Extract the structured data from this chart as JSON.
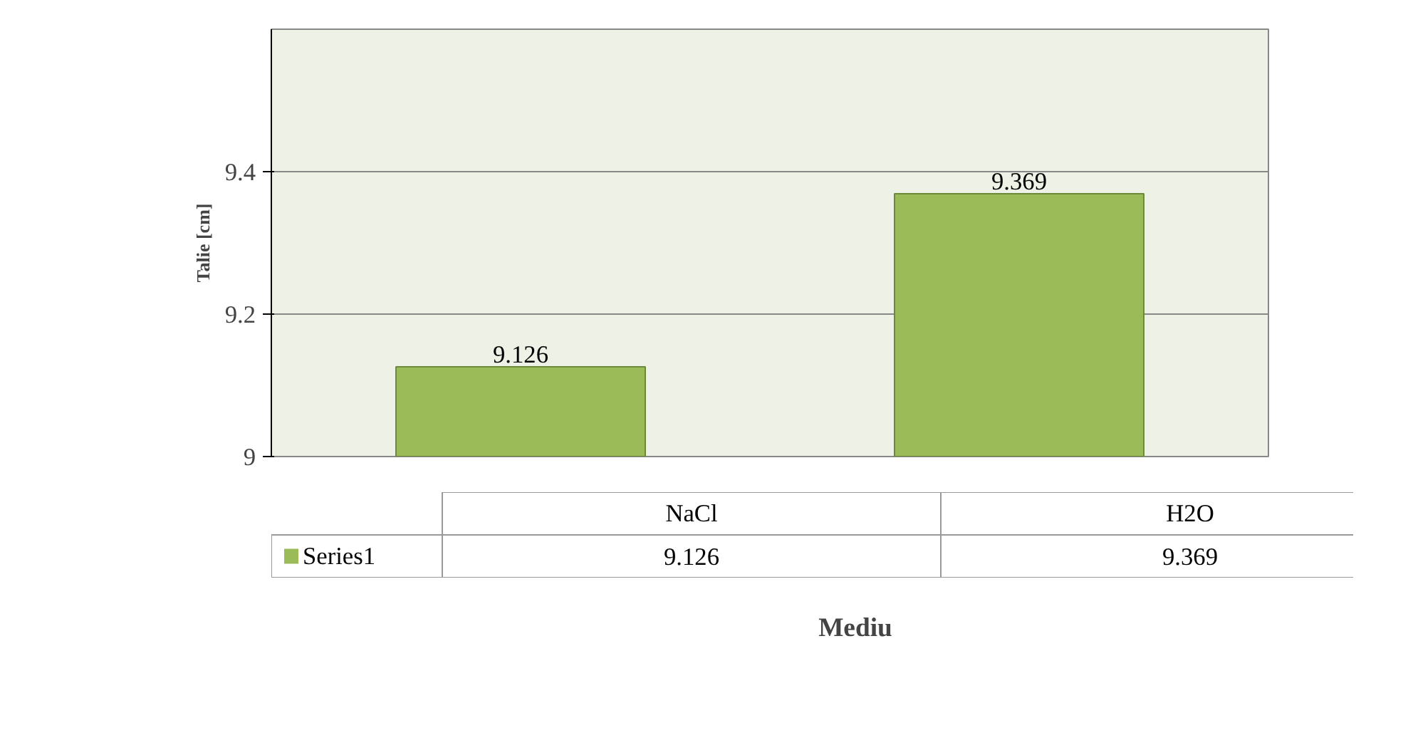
{
  "chart_data": {
    "type": "bar",
    "ylabel": "Talie [cm]",
    "xlabel": "Mediu",
    "categories": [
      "NaCl",
      "H2O"
    ],
    "series": [
      {
        "name": "Series1",
        "color": "#9bbb59",
        "values": [
          9.126,
          9.369
        ],
        "value_labels": [
          "9.126",
          "9.369"
        ]
      }
    ],
    "annotations": [
      "9.126",
      "9.369"
    ],
    "ylim": [
      9,
      9.6
    ],
    "yticks": [
      9,
      9.2,
      9.4
    ],
    "grid": "y",
    "data_labels": true,
    "legend": "bottom"
  }
}
